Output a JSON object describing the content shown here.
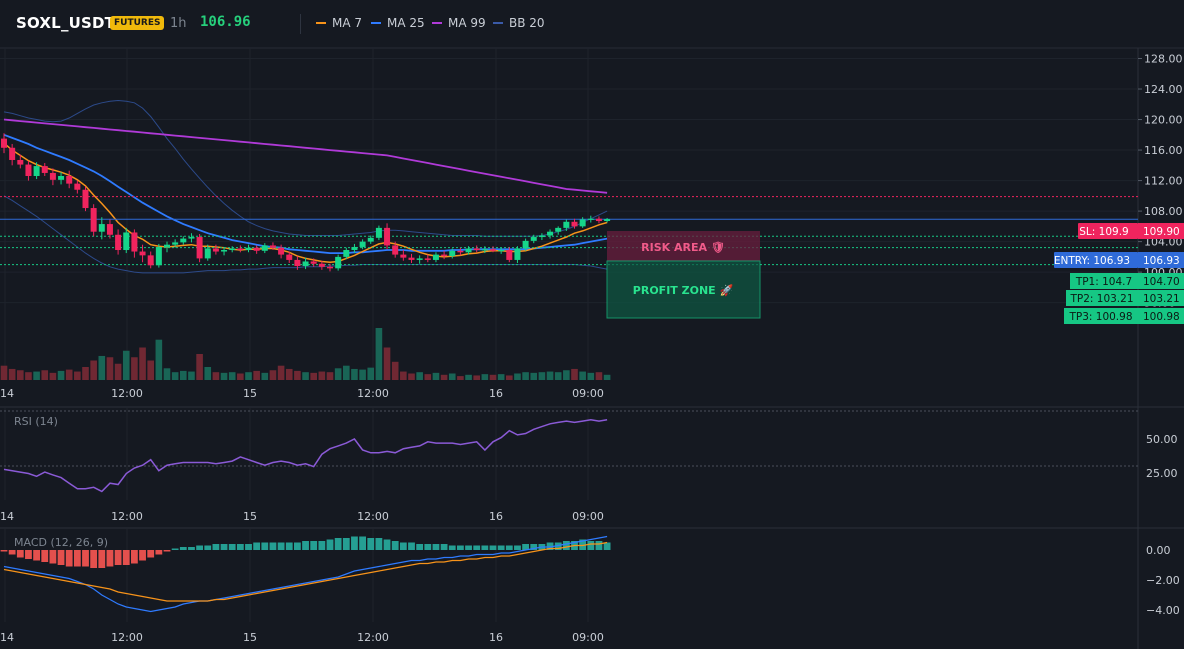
{
  "header": {
    "symbol": "SOXL_USDT",
    "badge": "FUTURES",
    "timeframe": "1h",
    "last_price": "106.96",
    "legend": [
      {
        "label": "MA 7",
        "color": "#f7931a"
      },
      {
        "label": "MA 25",
        "color": "#2f7bff"
      },
      {
        "label": "MA 99",
        "color": "#b03ad8"
      },
      {
        "label": "BB 20",
        "color": "#3a5aa8"
      }
    ]
  },
  "price_axis": {
    "ticks": [
      "128.00",
      "124.00",
      "120.00",
      "116.00",
      "112.00",
      "108.00",
      "104.00",
      "100.00",
      "96.00"
    ]
  },
  "time_axis": {
    "labels": [
      "14",
      "12:00",
      "15",
      "12:00",
      "16",
      "09:00"
    ]
  },
  "levels": {
    "sl": {
      "label": "SL: 109.9",
      "value": "109.90",
      "color": "#f0245e"
    },
    "entry": {
      "label": "ENTRY: 106.93",
      "value": "106.93",
      "color": "#2f6bd8"
    },
    "tp": [
      {
        "label": "TP1: 104.7",
        "value": "104.70"
      },
      {
        "label": "TP2: 103.21",
        "value": "103.21"
      },
      {
        "label": "TP3: 100.98",
        "value": "100.98"
      }
    ],
    "tp_color": "#16c784"
  },
  "zones": {
    "risk": "RISK AREA 🛡",
    "profit": "PROFIT ZONE 🚀"
  },
  "rsi": {
    "title": "RSI (14)",
    "ticks": [
      "50.00",
      "25.00"
    ],
    "color": "#8a5ad6"
  },
  "macd": {
    "title": "MACD (12, 26, 9)",
    "ticks": [
      "0.00",
      "−2.00",
      "−4.00"
    ]
  },
  "chart_data": {
    "type": "candlestick",
    "ylim": [
      94,
      129
    ],
    "candles": [
      {
        "o": 117.5,
        "h": 118.2,
        "l": 115.6,
        "c": 116.3
      },
      {
        "o": 116.3,
        "h": 116.8,
        "l": 114.0,
        "c": 114.7
      },
      {
        "o": 114.7,
        "h": 115.4,
        "l": 113.6,
        "c": 114.1
      },
      {
        "o": 114.1,
        "h": 114.6,
        "l": 112.0,
        "c": 112.6
      },
      {
        "o": 112.6,
        "h": 114.4,
        "l": 112.2,
        "c": 113.9
      },
      {
        "o": 113.9,
        "h": 114.3,
        "l": 112.6,
        "c": 113.0
      },
      {
        "o": 113.0,
        "h": 113.6,
        "l": 111.4,
        "c": 112.1
      },
      {
        "o": 112.1,
        "h": 113.1,
        "l": 111.5,
        "c": 112.6
      },
      {
        "o": 112.6,
        "h": 113.3,
        "l": 111.0,
        "c": 111.6
      },
      {
        "o": 111.6,
        "h": 112.0,
        "l": 110.3,
        "c": 110.8
      },
      {
        "o": 110.8,
        "h": 111.2,
        "l": 108.0,
        "c": 108.4
      },
      {
        "o": 108.4,
        "h": 108.9,
        "l": 104.7,
        "c": 105.3
      },
      {
        "o": 105.3,
        "h": 107.2,
        "l": 104.3,
        "c": 106.3
      },
      {
        "o": 106.3,
        "h": 106.9,
        "l": 104.4,
        "c": 104.9
      },
      {
        "o": 104.9,
        "h": 105.6,
        "l": 102.3,
        "c": 102.9
      },
      {
        "o": 102.9,
        "h": 105.8,
        "l": 102.5,
        "c": 105.2
      },
      {
        "o": 105.2,
        "h": 105.6,
        "l": 101.9,
        "c": 102.7
      },
      {
        "o": 102.7,
        "h": 103.6,
        "l": 101.3,
        "c": 102.2
      },
      {
        "o": 102.2,
        "h": 102.7,
        "l": 100.5,
        "c": 100.9
      },
      {
        "o": 100.9,
        "h": 103.7,
        "l": 100.6,
        "c": 103.3
      },
      {
        "o": 103.3,
        "h": 104.0,
        "l": 102.6,
        "c": 103.6
      },
      {
        "o": 103.6,
        "h": 104.3,
        "l": 103.2,
        "c": 103.9
      },
      {
        "o": 103.9,
        "h": 104.7,
        "l": 103.6,
        "c": 104.4
      },
      {
        "o": 104.4,
        "h": 105.1,
        "l": 103.9,
        "c": 104.6
      },
      {
        "o": 104.6,
        "h": 105.0,
        "l": 101.3,
        "c": 101.8
      },
      {
        "o": 101.8,
        "h": 103.6,
        "l": 101.5,
        "c": 103.1
      },
      {
        "o": 103.1,
        "h": 103.6,
        "l": 102.3,
        "c": 102.7
      },
      {
        "o": 102.7,
        "h": 103.3,
        "l": 102.2,
        "c": 102.9
      },
      {
        "o": 102.9,
        "h": 103.4,
        "l": 102.6,
        "c": 103.1
      },
      {
        "o": 103.1,
        "h": 103.5,
        "l": 102.6,
        "c": 102.9
      },
      {
        "o": 102.9,
        "h": 103.6,
        "l": 102.6,
        "c": 103.2
      },
      {
        "o": 103.2,
        "h": 103.5,
        "l": 102.4,
        "c": 102.8
      },
      {
        "o": 102.8,
        "h": 103.8,
        "l": 102.5,
        "c": 103.5
      },
      {
        "o": 103.5,
        "h": 103.9,
        "l": 102.9,
        "c": 103.2
      },
      {
        "o": 103.2,
        "h": 103.6,
        "l": 101.8,
        "c": 102.3
      },
      {
        "o": 102.3,
        "h": 102.7,
        "l": 101.2,
        "c": 101.6
      },
      {
        "o": 101.6,
        "h": 102.1,
        "l": 100.3,
        "c": 100.8
      },
      {
        "o": 100.8,
        "h": 101.9,
        "l": 100.4,
        "c": 101.4
      },
      {
        "o": 101.4,
        "h": 101.8,
        "l": 100.7,
        "c": 101.1
      },
      {
        "o": 101.1,
        "h": 101.5,
        "l": 100.3,
        "c": 100.7
      },
      {
        "o": 100.7,
        "h": 101.1,
        "l": 100.1,
        "c": 100.5
      },
      {
        "o": 100.5,
        "h": 102.3,
        "l": 100.2,
        "c": 102.0
      },
      {
        "o": 102.0,
        "h": 103.2,
        "l": 101.7,
        "c": 102.9
      },
      {
        "o": 102.9,
        "h": 103.7,
        "l": 102.5,
        "c": 103.3
      },
      {
        "o": 103.3,
        "h": 104.3,
        "l": 103.0,
        "c": 104.0
      },
      {
        "o": 104.0,
        "h": 104.8,
        "l": 103.7,
        "c": 104.5
      },
      {
        "o": 104.5,
        "h": 106.1,
        "l": 104.2,
        "c": 105.8
      },
      {
        "o": 105.8,
        "h": 106.4,
        "l": 103.0,
        "c": 103.5
      },
      {
        "o": 103.5,
        "h": 104.0,
        "l": 101.9,
        "c": 102.3
      },
      {
        "o": 102.3,
        "h": 102.9,
        "l": 101.5,
        "c": 101.9
      },
      {
        "o": 101.9,
        "h": 102.4,
        "l": 101.2,
        "c": 101.6
      },
      {
        "o": 101.6,
        "h": 102.2,
        "l": 101.1,
        "c": 101.8
      },
      {
        "o": 101.8,
        "h": 102.3,
        "l": 101.3,
        "c": 101.6
      },
      {
        "o": 101.6,
        "h": 102.6,
        "l": 101.3,
        "c": 102.3
      },
      {
        "o": 102.3,
        "h": 102.8,
        "l": 101.7,
        "c": 102.1
      },
      {
        "o": 102.1,
        "h": 103.1,
        "l": 101.8,
        "c": 102.8
      },
      {
        "o": 102.8,
        "h": 103.2,
        "l": 102.2,
        "c": 102.6
      },
      {
        "o": 102.6,
        "h": 103.4,
        "l": 102.3,
        "c": 103.1
      },
      {
        "o": 103.1,
        "h": 103.5,
        "l": 102.6,
        "c": 102.9
      },
      {
        "o": 102.9,
        "h": 103.4,
        "l": 102.5,
        "c": 103.0
      },
      {
        "o": 103.0,
        "h": 103.4,
        "l": 102.6,
        "c": 102.8
      },
      {
        "o": 102.8,
        "h": 103.2,
        "l": 102.4,
        "c": 102.9
      },
      {
        "o": 102.9,
        "h": 103.3,
        "l": 101.3,
        "c": 101.6
      },
      {
        "o": 101.6,
        "h": 103.4,
        "l": 101.2,
        "c": 103.1
      },
      {
        "o": 103.1,
        "h": 104.4,
        "l": 102.8,
        "c": 104.1
      },
      {
        "o": 104.1,
        "h": 104.9,
        "l": 103.8,
        "c": 104.6
      },
      {
        "o": 104.6,
        "h": 105.1,
        "l": 104.2,
        "c": 104.8
      },
      {
        "o": 104.8,
        "h": 105.6,
        "l": 104.4,
        "c": 105.3
      },
      {
        "o": 105.3,
        "h": 106.0,
        "l": 104.9,
        "c": 105.8
      },
      {
        "o": 105.8,
        "h": 106.9,
        "l": 105.4,
        "c": 106.6
      },
      {
        "o": 106.6,
        "h": 107.0,
        "l": 105.7,
        "c": 106.0
      },
      {
        "o": 106.0,
        "h": 107.2,
        "l": 105.8,
        "c": 106.9
      },
      {
        "o": 106.9,
        "h": 107.4,
        "l": 106.5,
        "c": 107.0
      },
      {
        "o": 107.0,
        "h": 107.3,
        "l": 106.4,
        "c": 106.7
      },
      {
        "o": 106.7,
        "h": 107.1,
        "l": 106.5,
        "c": 106.96
      }
    ],
    "volume": [
      22,
      17,
      15,
      12,
      13,
      15,
      11,
      14,
      16,
      13,
      20,
      30,
      37,
      35,
      25,
      45,
      35,
      50,
      30,
      62,
      18,
      12,
      14,
      13,
      40,
      20,
      12,
      11,
      12,
      10,
      12,
      14,
      11,
      15,
      22,
      17,
      14,
      12,
      11,
      13,
      12,
      18,
      22,
      17,
      16,
      19,
      80,
      50,
      28,
      13,
      10,
      12,
      9,
      11,
      8,
      10,
      6,
      8,
      7,
      9,
      8,
      9,
      7,
      10,
      12,
      11,
      12,
      13,
      12,
      15,
      17,
      13,
      11,
      12,
      8
    ],
    "ma7": [
      116.9,
      116.0,
      115.3,
      114.6,
      114.1,
      113.7,
      113.4,
      113.1,
      112.7,
      112.1,
      111.3,
      110.1,
      109.0,
      107.8,
      106.5,
      105.6,
      104.8,
      104.3,
      103.6,
      103.4,
      103.3,
      103.4,
      103.5,
      103.6,
      103.4,
      103.4,
      103.3,
      103.2,
      103.0,
      102.9,
      103.0,
      103.0,
      103.1,
      103.1,
      102.9,
      102.6,
      102.1,
      101.8,
      101.6,
      101.4,
      101.3,
      101.4,
      101.8,
      102.2,
      102.7,
      103.2,
      103.7,
      103.9,
      103.7,
      103.4,
      103.0,
      102.6,
      102.3,
      102.1,
      102.0,
      102.1,
      102.2,
      102.4,
      102.5,
      102.7,
      102.8,
      102.8,
      102.7,
      102.7,
      102.8,
      103.1,
      103.4,
      103.8,
      104.2,
      104.6,
      105.1,
      105.4,
      105.8,
      106.2,
      106.5
    ],
    "ma25": [
      118.0,
      117.6,
      117.2,
      116.8,
      116.3,
      115.9,
      115.5,
      115.1,
      114.7,
      114.2,
      113.7,
      113.2,
      112.6,
      111.9,
      111.2,
      110.5,
      109.8,
      109.1,
      108.5,
      107.9,
      107.3,
      106.8,
      106.3,
      105.9,
      105.5,
      105.1,
      104.8,
      104.5,
      104.2,
      104.0,
      103.8,
      103.6,
      103.4,
      103.3,
      103.2,
      103.0,
      102.9,
      102.8,
      102.7,
      102.6,
      102.5,
      102.5,
      102.5,
      102.6,
      102.6,
      102.7,
      102.8,
      102.9,
      102.9,
      102.9,
      102.8,
      102.8,
      102.8,
      102.8,
      102.8,
      102.9,
      102.9,
      103.0,
      103.0,
      103.0,
      103.0,
      103.0,
      103.0,
      103.0,
      103.0,
      103.1,
      103.2,
      103.3,
      103.4,
      103.5,
      103.6,
      103.8,
      104.0,
      104.2,
      104.4
    ],
    "ma99": [
      120.0,
      119.9,
      119.8,
      119.7,
      119.6,
      119.5,
      119.4,
      119.3,
      119.2,
      119.1,
      119.0,
      118.9,
      118.8,
      118.7,
      118.6,
      118.5,
      118.4,
      118.3,
      118.2,
      118.1,
      118.0,
      117.9,
      117.8,
      117.7,
      117.6,
      117.5,
      117.4,
      117.3,
      117.2,
      117.1,
      117.0,
      116.9,
      116.8,
      116.7,
      116.6,
      116.5,
      116.4,
      116.3,
      116.2,
      116.1,
      116.0,
      115.9,
      115.8,
      115.7,
      115.6,
      115.5,
      115.4,
      115.3,
      115.1,
      114.9,
      114.7,
      114.5,
      114.3,
      114.1,
      113.9,
      113.7,
      113.5,
      113.3,
      113.1,
      112.9,
      112.7,
      112.5,
      112.3,
      112.1,
      111.9,
      111.7,
      111.5,
      111.3,
      111.1,
      110.9,
      110.8,
      110.7,
      110.6,
      110.5,
      110.4
    ],
    "bb_upper": [
      121.0,
      120.8,
      120.5,
      120.2,
      120.0,
      119.8,
      119.7,
      119.8,
      120.2,
      120.8,
      121.4,
      121.9,
      122.2,
      122.4,
      122.5,
      122.4,
      122.2,
      121.5,
      120.4,
      119.0,
      117.5,
      116.2,
      114.8,
      113.5,
      112.3,
      111.1,
      110.0,
      109.0,
      108.1,
      107.3,
      106.6,
      106.1,
      105.7,
      105.4,
      105.2,
      105.0,
      104.9,
      104.8,
      104.8,
      104.8,
      104.8,
      104.8,
      104.9,
      105.0,
      105.1,
      105.2,
      105.4,
      105.5,
      105.5,
      105.4,
      105.3,
      105.2,
      105.1,
      105.0,
      104.9,
      104.8,
      104.8,
      104.8,
      104.8,
      104.7,
      104.7,
      104.7,
      104.7,
      104.7,
      104.7,
      104.7,
      104.8,
      105.0,
      105.3,
      105.6,
      106.0,
      106.5,
      107.0,
      107.5,
      108.0
    ],
    "bb_lower": [
      110.0,
      109.4,
      108.7,
      108.0,
      107.3,
      106.5,
      105.7,
      104.9,
      104.1,
      103.3,
      102.5,
      101.8,
      101.2,
      100.7,
      100.4,
      100.2,
      100.0,
      99.9,
      99.9,
      99.9,
      99.9,
      99.9,
      99.9,
      100.0,
      100.1,
      100.2,
      100.2,
      100.2,
      100.3,
      100.3,
      100.4,
      100.4,
      100.5,
      100.6,
      100.6,
      100.6,
      100.6,
      100.7,
      100.7,
      100.7,
      100.8,
      100.8,
      100.9,
      100.9,
      101.0,
      101.0,
      101.0,
      101.0,
      101.0,
      101.0,
      101.0,
      101.0,
      101.0,
      101.0,
      101.0,
      101.0,
      101.0,
      101.0,
      101.0,
      101.0,
      101.0,
      101.0,
      101.0,
      101.0,
      101.0,
      101.0,
      101.0,
      101.0,
      101.0,
      101.0,
      101.0,
      100.9,
      100.8,
      100.6,
      100.4
    ],
    "rsi": [
      28,
      27,
      26,
      25,
      23,
      26,
      24,
      22,
      18,
      14,
      14,
      15,
      12,
      18,
      17,
      25,
      29,
      31,
      35,
      27,
      31,
      32,
      33,
      33,
      33,
      33,
      32,
      33,
      34,
      37,
      35,
      33,
      31,
      33,
      34,
      33,
      31,
      32,
      30,
      39,
      43,
      45,
      47,
      50,
      42,
      40,
      40,
      41,
      40,
      43,
      44,
      45,
      48,
      47,
      47,
      47,
      46,
      47,
      48,
      42,
      48,
      51,
      56,
      53,
      54,
      57,
      59,
      61,
      62,
      63,
      62,
      63,
      64,
      63,
      64
    ],
    "macd_hist": [
      -0.1,
      -0.3,
      -0.5,
      -0.6,
      -0.7,
      -0.8,
      -0.9,
      -1.0,
      -1.1,
      -1.1,
      -1.1,
      -1.2,
      -1.2,
      -1.1,
      -1.0,
      -1.0,
      -0.9,
      -0.7,
      -0.5,
      -0.3,
      -0.1,
      0.1,
      0.2,
      0.2,
      0.3,
      0.3,
      0.4,
      0.4,
      0.4,
      0.4,
      0.4,
      0.5,
      0.5,
      0.5,
      0.5,
      0.5,
      0.5,
      0.6,
      0.6,
      0.6,
      0.7,
      0.8,
      0.8,
      0.9,
      0.9,
      0.8,
      0.8,
      0.7,
      0.6,
      0.5,
      0.5,
      0.4,
      0.4,
      0.4,
      0.4,
      0.3,
      0.3,
      0.3,
      0.3,
      0.3,
      0.3,
      0.3,
      0.3,
      0.3,
      0.4,
      0.4,
      0.4,
      0.5,
      0.5,
      0.6,
      0.6,
      0.7,
      0.6,
      0.6,
      0.5
    ],
    "macd_line": [
      -1.1,
      -1.2,
      -1.3,
      -1.4,
      -1.5,
      -1.6,
      -1.7,
      -1.8,
      -1.9,
      -2.1,
      -2.3,
      -2.6,
      -3.0,
      -3.3,
      -3.6,
      -3.8,
      -3.9,
      -4.0,
      -4.1,
      -4.0,
      -3.9,
      -3.8,
      -3.6,
      -3.5,
      -3.4,
      -3.4,
      -3.3,
      -3.2,
      -3.1,
      -3.0,
      -2.9,
      -2.8,
      -2.7,
      -2.6,
      -2.5,
      -2.4,
      -2.3,
      -2.2,
      -2.1,
      -2.0,
      -1.9,
      -1.8,
      -1.6,
      -1.4,
      -1.3,
      -1.2,
      -1.1,
      -1.0,
      -0.9,
      -0.8,
      -0.7,
      -0.7,
      -0.6,
      -0.6,
      -0.5,
      -0.5,
      -0.4,
      -0.4,
      -0.3,
      -0.3,
      -0.3,
      -0.2,
      -0.2,
      -0.1,
      0.0,
      0.1,
      0.2,
      0.2,
      0.3,
      0.4,
      0.5,
      0.6,
      0.7,
      0.8,
      0.9
    ],
    "macd_signal": [
      -1.3,
      -1.4,
      -1.5,
      -1.6,
      -1.7,
      -1.8,
      -1.9,
      -2.0,
      -2.1,
      -2.2,
      -2.3,
      -2.4,
      -2.5,
      -2.6,
      -2.8,
      -2.9,
      -3.0,
      -3.1,
      -3.2,
      -3.3,
      -3.4,
      -3.4,
      -3.4,
      -3.4,
      -3.4,
      -3.4,
      -3.3,
      -3.3,
      -3.2,
      -3.1,
      -3.0,
      -2.9,
      -2.8,
      -2.7,
      -2.6,
      -2.5,
      -2.4,
      -2.3,
      -2.2,
      -2.1,
      -2.0,
      -1.9,
      -1.8,
      -1.7,
      -1.6,
      -1.5,
      -1.4,
      -1.3,
      -1.2,
      -1.1,
      -1.0,
      -0.9,
      -0.9,
      -0.8,
      -0.8,
      -0.7,
      -0.7,
      -0.6,
      -0.6,
      -0.5,
      -0.5,
      -0.4,
      -0.4,
      -0.3,
      -0.2,
      -0.1,
      0.0,
      0.1,
      0.1,
      0.2,
      0.3,
      0.3,
      0.4,
      0.4,
      0.5
    ]
  }
}
